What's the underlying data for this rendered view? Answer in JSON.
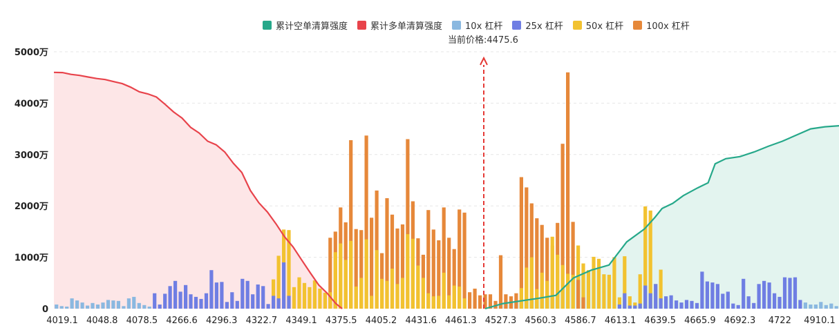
{
  "legend": {
    "short_liq": "累计空单清算强度",
    "long_liq": "累计多单清算强度",
    "lev10": "10x 杠杆",
    "lev25": "25x 杠杆",
    "lev50": "50x 杠杆",
    "lev100": "100x 杠杆"
  },
  "current_price_label": "当前价格:4475.6",
  "colors": {
    "short_line": "#26a88a",
    "short_fill": "#e3f4ef",
    "long_line": "#e8434b",
    "long_fill": "#fde6e7",
    "lev10": "#8ab8e0",
    "lev25": "#6f7ee3",
    "lev50": "#f2c230",
    "lev100": "#e6883a",
    "price_marker": "#e53935"
  },
  "chart_data": {
    "type": "bar",
    "title": "",
    "xlabel": "",
    "ylabel": "",
    "y_ticks": [
      "0",
      "1000万",
      "2000万",
      "3000万",
      "4000万",
      "5000万"
    ],
    "ylim": [
      0,
      5000
    ],
    "y_unit": "万",
    "x_ticks": [
      "4019.1",
      "4048.8",
      "4078.5",
      "4266.6",
      "4296.3",
      "4322.7",
      "4349.1",
      "4375.5",
      "4405.2",
      "4431.6",
      "4461.3",
      "4527.3",
      "4560.3",
      "4586.7",
      "4613.1",
      "4639.5",
      "4665.9",
      "4692.3",
      "4722",
      "4910.1"
    ],
    "current_price": 4475.6,
    "bars": [
      {
        "l": 10,
        "v": 80
      },
      {
        "l": 10,
        "v": 50
      },
      {
        "l": 10,
        "v": 40
      },
      {
        "l": 10,
        "v": 200
      },
      {
        "l": 10,
        "v": 160
      },
      {
        "l": 10,
        "v": 120
      },
      {
        "l": 10,
        "v": 60
      },
      {
        "l": 10,
        "v": 110
      },
      {
        "l": 10,
        "v": 80
      },
      {
        "l": 10,
        "v": 120
      },
      {
        "l": 10,
        "v": 170
      },
      {
        "l": 10,
        "v": 160
      },
      {
        "l": 10,
        "v": 150
      },
      {
        "l": 10,
        "v": 50
      },
      {
        "l": 10,
        "v": 200
      },
      {
        "l": 10,
        "v": 230
      },
      {
        "l": 10,
        "v": 110
      },
      {
        "l": 10,
        "v": 70
      },
      {
        "l": 10,
        "v": 40
      },
      {
        "l": 25,
        "v": 300
      },
      {
        "l": 25,
        "v": 80
      },
      {
        "l": 25,
        "v": 290
      },
      {
        "l": 25,
        "v": 440
      },
      {
        "l": 25,
        "v": 540
      },
      {
        "l": 25,
        "v": 330
      },
      {
        "l": 25,
        "v": 460
      },
      {
        "l": 25,
        "v": 280
      },
      {
        "l": 25,
        "v": 230
      },
      {
        "l": 25,
        "v": 190
      },
      {
        "l": 25,
        "v": 300
      },
      {
        "l": 25,
        "v": 750
      },
      {
        "l": 25,
        "v": 510
      },
      {
        "l": 25,
        "v": 520
      },
      {
        "l": 25,
        "v": 130
      },
      {
        "l": 25,
        "v": 320
      },
      {
        "l": 25,
        "v": 150
      },
      {
        "l": 25,
        "v": 580
      },
      {
        "l": 25,
        "v": 540
      },
      {
        "l": 25,
        "v": 280
      },
      {
        "l": 25,
        "v": 470
      },
      {
        "l": 25,
        "v": 440
      },
      {
        "l": 25,
        "v": 90
      },
      {
        "l": 50,
        "v": 570,
        "s": [
          [
            25,
            250
          ]
        ]
      },
      {
        "l": 50,
        "v": 1030,
        "s": [
          [
            25,
            200
          ]
        ]
      },
      {
        "l": 50,
        "v": 1540,
        "s": [
          [
            25,
            900
          ]
        ]
      },
      {
        "l": 50,
        "v": 1530,
        "s": [
          [
            25,
            250
          ]
        ]
      },
      {
        "l": 50,
        "v": 420
      },
      {
        "l": 50,
        "v": 610
      },
      {
        "l": 50,
        "v": 500
      },
      {
        "l": 50,
        "v": 420
      },
      {
        "l": 50,
        "v": 550
      },
      {
        "l": 50,
        "v": 390
      },
      {
        "l": 50,
        "v": 310
      },
      {
        "l": 100,
        "v": 1380,
        "s": [
          [
            50,
            320
          ]
        ]
      },
      {
        "l": 100,
        "v": 1500,
        "s": [
          [
            50,
            1100
          ]
        ]
      },
      {
        "l": 100,
        "v": 1970,
        "s": [
          [
            50,
            1270
          ]
        ]
      },
      {
        "l": 100,
        "v": 1680,
        "s": [
          [
            50,
            950
          ]
        ]
      },
      {
        "l": 100,
        "v": 3280,
        "s": [
          [
            50,
            1320
          ]
        ]
      },
      {
        "l": 100,
        "v": 1550,
        "s": [
          [
            50,
            430
          ]
        ]
      },
      {
        "l": 100,
        "v": 1530,
        "s": [
          [
            50,
            600
          ]
        ]
      },
      {
        "l": 100,
        "v": 3370,
        "s": [
          [
            50,
            1350
          ]
        ]
      },
      {
        "l": 100,
        "v": 1770,
        "s": [
          [
            50,
            250
          ]
        ]
      },
      {
        "l": 100,
        "v": 2300,
        "s": [
          [
            50,
            1140
          ]
        ]
      },
      {
        "l": 100,
        "v": 1080,
        "s": [
          [
            50,
            580
          ]
        ]
      },
      {
        "l": 100,
        "v": 2150,
        "s": [
          [
            50,
            540
          ]
        ]
      },
      {
        "l": 100,
        "v": 1830,
        "s": [
          [
            50,
            780
          ]
        ]
      },
      {
        "l": 100,
        "v": 1560,
        "s": [
          [
            50,
            480
          ]
        ]
      },
      {
        "l": 100,
        "v": 1640,
        "s": [
          [
            50,
            600
          ]
        ]
      },
      {
        "l": 100,
        "v": 3300,
        "s": [
          [
            50,
            1450
          ]
        ]
      },
      {
        "l": 100,
        "v": 2090,
        "s": [
          [
            50,
            1360
          ]
        ]
      },
      {
        "l": 100,
        "v": 1370,
        "s": [
          [
            50,
            840
          ]
        ]
      },
      {
        "l": 100,
        "v": 1050,
        "s": [
          [
            50,
            600
          ]
        ]
      },
      {
        "l": 100,
        "v": 1920,
        "s": [
          [
            50,
            300
          ]
        ]
      },
      {
        "l": 100,
        "v": 1540,
        "s": [
          [
            50,
            240
          ]
        ]
      },
      {
        "l": 100,
        "v": 1330,
        "s": [
          [
            50,
            250
          ]
        ]
      },
      {
        "l": 100,
        "v": 1970,
        "s": [
          [
            50,
            700
          ]
        ]
      },
      {
        "l": 100,
        "v": 1380,
        "s": [
          [
            50,
            260
          ]
        ]
      },
      {
        "l": 100,
        "v": 1160,
        "s": [
          [
            50,
            450
          ]
        ]
      },
      {
        "l": 100,
        "v": 1930,
        "s": [
          [
            50,
            430
          ]
        ]
      },
      {
        "l": 100,
        "v": 1870,
        "s": [
          [
            50,
            200
          ]
        ]
      },
      {
        "l": 100,
        "v": 320
      },
      {
        "l": 100,
        "v": 390
      },
      {
        "l": 100,
        "v": 260
      },
      {
        "l": 100,
        "v": 280
      },
      {
        "l": 100,
        "v": 280
      },
      {
        "l": 100,
        "v": 150
      },
      {
        "l": 100,
        "v": 1040
      },
      {
        "l": 100,
        "v": 280
      },
      {
        "l": 100,
        "v": 240
      },
      {
        "l": 100,
        "v": 300
      },
      {
        "l": 100,
        "v": 2560,
        "s": [
          [
            50,
            400
          ]
        ]
      },
      {
        "l": 100,
        "v": 2360,
        "s": [
          [
            50,
            800
          ]
        ]
      },
      {
        "l": 100,
        "v": 2050,
        "s": [
          [
            50,
            1000
          ]
        ]
      },
      {
        "l": 100,
        "v": 1760,
        "s": [
          [
            50,
            380
          ]
        ]
      },
      {
        "l": 100,
        "v": 1630,
        "s": [
          [
            50,
            700
          ]
        ]
      },
      {
        "l": 100,
        "v": 1380,
        "s": [
          [
            50,
            540
          ]
        ]
      },
      {
        "l": 100,
        "v": 1230,
        "s": [
          [
            50,
            1400
          ]
        ]
      },
      {
        "l": 100,
        "v": 1670,
        "s": [
          [
            50,
            1050
          ]
        ]
      },
      {
        "l": 100,
        "v": 3210,
        "s": [
          [
            50,
            850
          ]
        ]
      },
      {
        "l": 100,
        "v": 4600,
        "s": [
          [
            50,
            680
          ]
        ]
      },
      {
        "l": 100,
        "v": 1690,
        "s": [
          [
            50,
            660
          ]
        ]
      },
      {
        "l": 50,
        "v": 1230,
        "s": [
          [
            100,
            560
          ]
        ]
      },
      {
        "l": 50,
        "v": 880,
        "s": [
          [
            100,
            220
          ]
        ]
      },
      {
        "l": 50,
        "v": 750
      },
      {
        "l": 50,
        "v": 1010
      },
      {
        "l": 50,
        "v": 970
      },
      {
        "l": 50,
        "v": 670
      },
      {
        "l": 50,
        "v": 660
      },
      {
        "l": 50,
        "v": 1000
      },
      {
        "l": 50,
        "v": 220,
        "s": [
          [
            25,
            80
          ]
        ]
      },
      {
        "l": 50,
        "v": 1020,
        "s": [
          [
            25,
            300
          ]
        ]
      },
      {
        "l": 50,
        "v": 240,
        "s": [
          [
            25,
            60
          ]
        ]
      },
      {
        "l": 50,
        "v": 120,
        "s": [
          [
            25,
            60
          ]
        ]
      },
      {
        "l": 50,
        "v": 670,
        "s": [
          [
            25,
            100
          ]
        ]
      },
      {
        "l": 50,
        "v": 1990,
        "s": [
          [
            25,
            450
          ]
        ]
      },
      {
        "l": 50,
        "v": 1910,
        "s": [
          [
            25,
            300
          ]
        ]
      },
      {
        "l": 50,
        "v": 480,
        "s": [
          [
            25,
            480
          ]
        ]
      },
      {
        "l": 50,
        "v": 760,
        "s": [
          [
            25,
            200
          ]
        ]
      },
      {
        "l": 25,
        "v": 240
      },
      {
        "l": 25,
        "v": 260
      },
      {
        "l": 25,
        "v": 160
      },
      {
        "l": 25,
        "v": 120
      },
      {
        "l": 25,
        "v": 170
      },
      {
        "l": 25,
        "v": 150
      },
      {
        "l": 25,
        "v": 110
      },
      {
        "l": 25,
        "v": 720
      },
      {
        "l": 25,
        "v": 530
      },
      {
        "l": 25,
        "v": 510
      },
      {
        "l": 25,
        "v": 480
      },
      {
        "l": 25,
        "v": 290
      },
      {
        "l": 25,
        "v": 330
      },
      {
        "l": 25,
        "v": 100
      },
      {
        "l": 25,
        "v": 70
      },
      {
        "l": 25,
        "v": 580
      },
      {
        "l": 25,
        "v": 240
      },
      {
        "l": 25,
        "v": 110
      },
      {
        "l": 25,
        "v": 480
      },
      {
        "l": 25,
        "v": 540
      },
      {
        "l": 25,
        "v": 510
      },
      {
        "l": 25,
        "v": 300
      },
      {
        "l": 25,
        "v": 230
      },
      {
        "l": 25,
        "v": 610
      },
      {
        "l": 25,
        "v": 600
      },
      {
        "l": 25,
        "v": 610
      },
      {
        "l": 25,
        "v": 170
      },
      {
        "l": 10,
        "v": 120
      },
      {
        "l": 10,
        "v": 80
      },
      {
        "l": 10,
        "v": 80
      },
      {
        "l": 10,
        "v": 130
      },
      {
        "l": 10,
        "v": 70
      },
      {
        "l": 10,
        "v": 100
      },
      {
        "l": 10,
        "v": 50
      }
    ],
    "series": [
      {
        "name": "累计多单清算强度",
        "points": [
          [
            0,
            4600
          ],
          [
            0.02,
            4595
          ],
          [
            0.04,
            4560
          ],
          [
            0.06,
            4540
          ],
          [
            0.08,
            4510
          ],
          [
            0.1,
            4480
          ],
          [
            0.12,
            4460
          ],
          [
            0.14,
            4420
          ],
          [
            0.16,
            4380
          ],
          [
            0.18,
            4310
          ],
          [
            0.2,
            4220
          ],
          [
            0.22,
            4180
          ],
          [
            0.24,
            4120
          ],
          [
            0.26,
            3980
          ],
          [
            0.28,
            3830
          ],
          [
            0.3,
            3710
          ],
          [
            0.32,
            3530
          ],
          [
            0.34,
            3420
          ],
          [
            0.36,
            3260
          ],
          [
            0.38,
            3190
          ],
          [
            0.4,
            3050
          ],
          [
            0.42,
            2830
          ],
          [
            0.44,
            2650
          ],
          [
            0.46,
            2300
          ],
          [
            0.48,
            2060
          ],
          [
            0.5,
            1880
          ],
          [
            0.52,
            1650
          ],
          [
            0.54,
            1400
          ],
          [
            0.56,
            1200
          ],
          [
            0.58,
            950
          ],
          [
            0.6,
            700
          ],
          [
            0.62,
            460
          ],
          [
            0.64,
            300
          ],
          [
            0.66,
            100
          ],
          [
            0.675,
            0
          ]
        ]
      },
      {
        "name": "累计空单清算强度",
        "points": [
          [
            0,
            0
          ],
          [
            0.05,
            100
          ],
          [
            0.1,
            150
          ],
          [
            0.15,
            200
          ],
          [
            0.2,
            260
          ],
          [
            0.25,
            600
          ],
          [
            0.3,
            750
          ],
          [
            0.35,
            850
          ],
          [
            0.4,
            1300
          ],
          [
            0.45,
            1550
          ],
          [
            0.48,
            1780
          ],
          [
            0.5,
            1950
          ],
          [
            0.53,
            2050
          ],
          [
            0.56,
            2200
          ],
          [
            0.6,
            2350
          ],
          [
            0.63,
            2450
          ],
          [
            0.65,
            2820
          ],
          [
            0.68,
            2920
          ],
          [
            0.72,
            2960
          ],
          [
            0.76,
            3050
          ],
          [
            0.8,
            3160
          ],
          [
            0.84,
            3260
          ],
          [
            0.88,
            3380
          ],
          [
            0.92,
            3500
          ],
          [
            0.96,
            3540
          ],
          [
            1,
            3560
          ]
        ]
      }
    ]
  }
}
